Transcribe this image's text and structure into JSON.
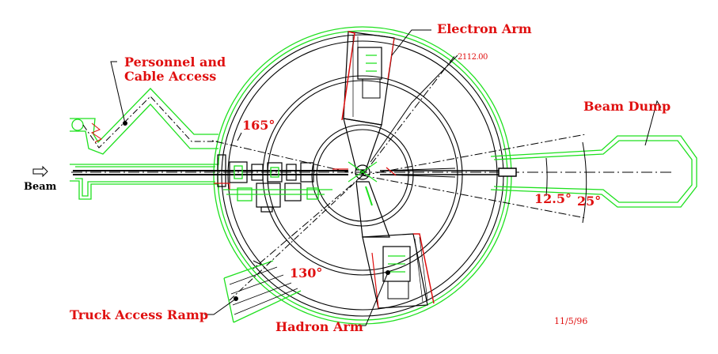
{
  "labels": {
    "electron_arm": "Electron Arm",
    "personnel_line1": "Personnel and",
    "personnel_line2": "Cable Access",
    "beam_dump": "Beam Dump",
    "beam": "Beam",
    "truck_ramp": "Truck Access Ramp",
    "hadron_arm": "Hadron Arm",
    "angle_165": "165°",
    "angle_130": "130°",
    "angle_12_5": "12.5°",
    "angle_25": "25°",
    "ref_number": "2112.00",
    "date": "11/5/96"
  },
  "colors": {
    "outline_green": "#1ee01e",
    "label_red": "#e01010",
    "line_black": "#000000"
  }
}
